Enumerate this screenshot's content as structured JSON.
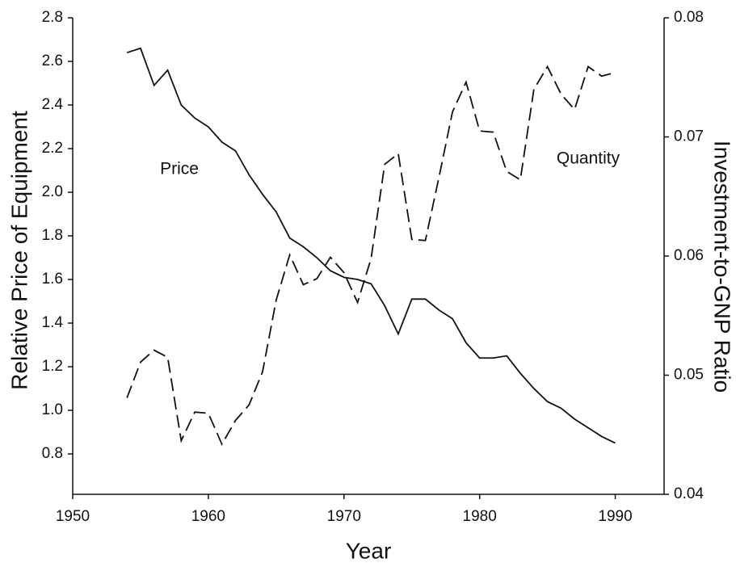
{
  "chart_data": {
    "type": "line",
    "x_label": "Year",
    "y_label": "Relative Price of Equipment",
    "y2_label": "Investment-to-GNP Ratio",
    "x": [
      1954,
      1955,
      1956,
      1957,
      1958,
      1959,
      1960,
      1961,
      1962,
      1963,
      1964,
      1965,
      1966,
      1967,
      1968,
      1969,
      1970,
      1971,
      1972,
      1973,
      1974,
      1975,
      1976,
      1977,
      1978,
      1979,
      1980,
      1981,
      1982,
      1983,
      1984,
      1985,
      1986,
      1987,
      1988,
      1989,
      1990
    ],
    "series": [
      {
        "name": "Price",
        "color": "#111111",
        "dash": "solid",
        "values": [
          2.64,
          2.66,
          2.49,
          2.56,
          2.4,
          2.34,
          2.3,
          2.23,
          2.19,
          2.08,
          1.99,
          1.91,
          1.79,
          1.75,
          1.7,
          1.64,
          1.61,
          1.6,
          1.58,
          1.48,
          1.35,
          1.51,
          1.51,
          1.46,
          1.42,
          1.31,
          1.24,
          1.24,
          1.25,
          1.17,
          1.1,
          1.04,
          1.01,
          0.96,
          0.92,
          0.88,
          0.85
        ]
      },
      {
        "name": "Quantity",
        "color": "#111111",
        "dash": "dashed",
        "axis": "y2",
        "values": [
          0.0481,
          0.0511,
          0.0521,
          0.0515,
          0.0445,
          0.0469,
          0.0468,
          0.0442,
          0.0462,
          0.0475,
          0.0503,
          0.0563,
          0.0601,
          0.0576,
          0.0581,
          0.0599,
          0.0586,
          0.0561,
          0.0598,
          0.0677,
          0.0686,
          0.0614,
          0.0613,
          0.0666,
          0.0721,
          0.0746,
          0.0705,
          0.0704,
          0.0671,
          0.0664,
          0.074,
          0.0759,
          0.0736,
          0.0723,
          0.0759,
          0.0751,
          0.0754
        ]
      }
    ],
    "xlim": [
      1950,
      1993.6
    ],
    "xticks": [
      1950,
      1960,
      1970,
      1980,
      1990
    ],
    "ylim": [
      0.615,
      2.8
    ],
    "yticks": [
      0.8,
      {
        "value": 1.0,
        "label": "1.0"
      },
      1.2,
      1.4,
      1.6,
      1.8,
      {
        "value": 2.0,
        "label": "2.0"
      },
      2.2,
      2.4,
      2.6,
      2.8
    ],
    "y2lim": [
      0.04,
      0.08
    ],
    "y2ticks": [
      0.04,
      0.05,
      0.06,
      0.07,
      0.08
    ],
    "grid": false
  }
}
